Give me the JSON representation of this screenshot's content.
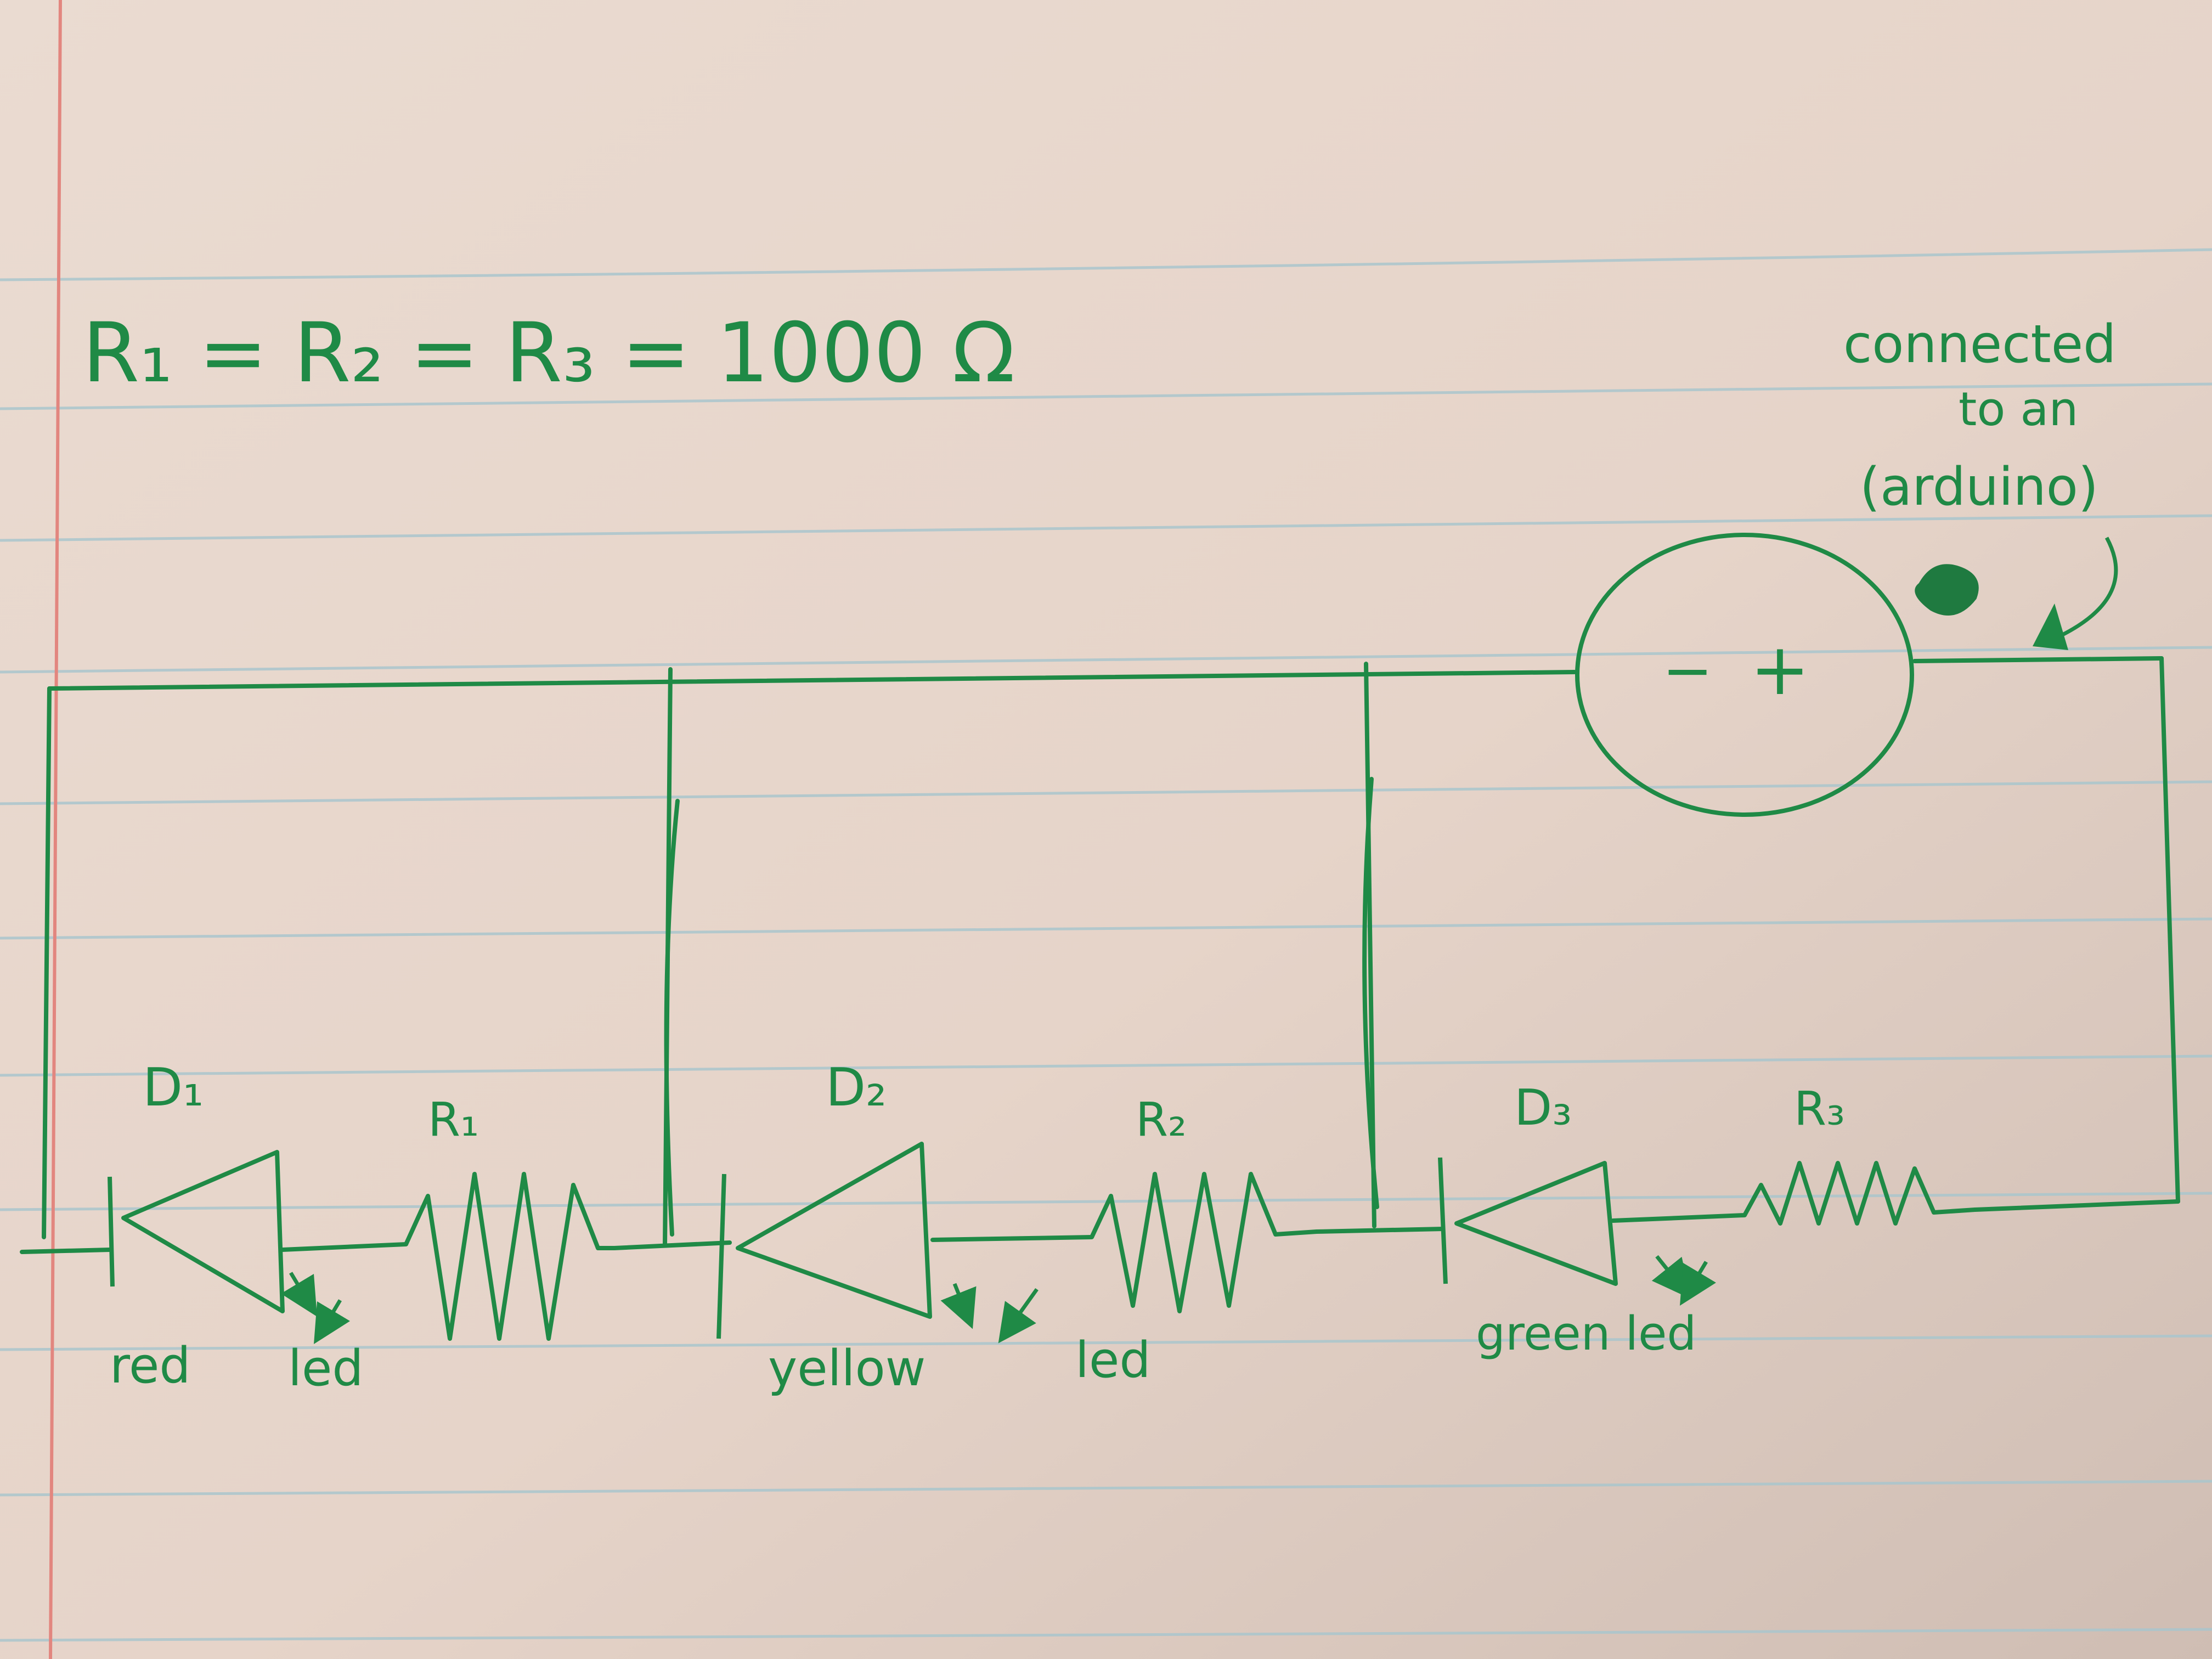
{
  "colors": {
    "paper": "#eadbd1",
    "ink": "#1f8a46",
    "rule_line": "#a9c6cd",
    "margin_line": "#e2867f"
  },
  "header": {
    "equation": "R₁ = R₂ = R₃ = 1000 Ω"
  },
  "annotation": {
    "line1": "connected",
    "line2": "to an",
    "line3": "(arduino)"
  },
  "source": {
    "minus": "−",
    "plus": "+"
  },
  "components": [
    {
      "diode_label": "D₁",
      "resistor_label": "R₁",
      "led_text_a": "red",
      "led_text_b": "led"
    },
    {
      "diode_label": "D₂",
      "resistor_label": "R₂",
      "led_text_a": "yellow",
      "led_text_b": "led"
    },
    {
      "diode_label": "D₃",
      "resistor_label": "R₃",
      "led_text_a": "green led"
    }
  ]
}
